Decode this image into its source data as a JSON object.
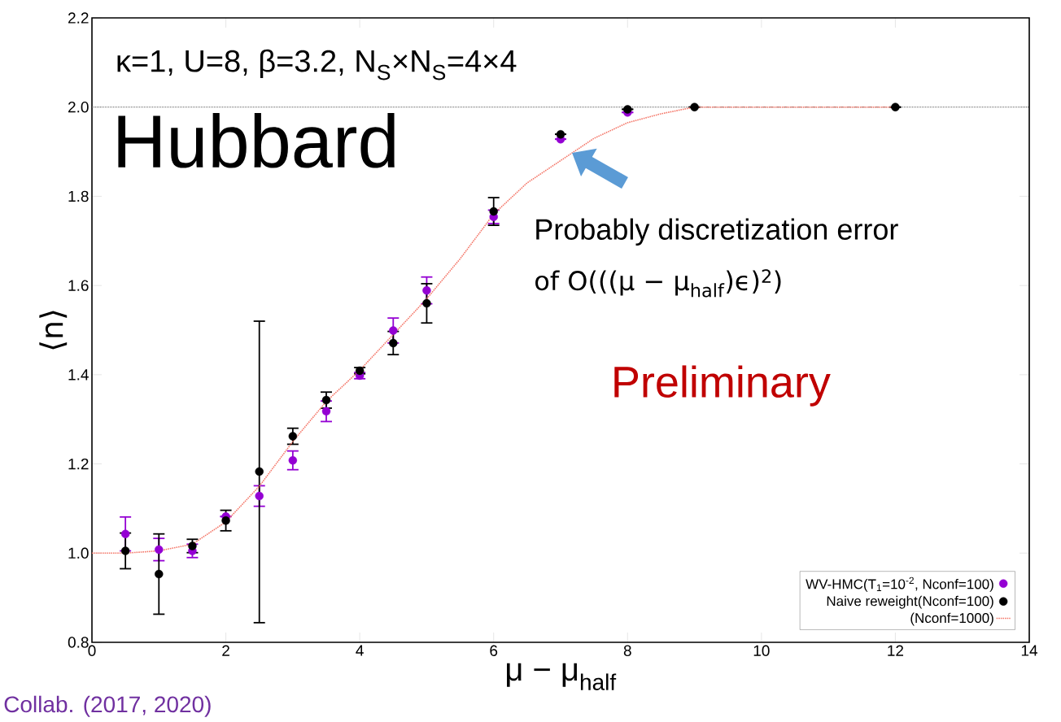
{
  "chart_data": {
    "type": "scatter",
    "xlabel": "μ − μ$_{half}$",
    "ylabel": "⟨n⟩",
    "x": [
      0.5,
      1,
      1.5,
      2,
      2.5,
      3,
      3.5,
      4,
      4.5,
      5,
      6,
      7,
      8,
      9,
      12
    ],
    "series": [
      {
        "name": "WV-HMC(T$_{1}$=10$^{-2}$, Nconf=100)",
        "color": "#9400d3",
        "marker": "circle",
        "values": [
          1.043,
          1.008,
          1.005,
          1.082,
          1.128,
          1.208,
          1.318,
          1.398,
          1.499,
          1.589,
          1.754,
          1.928,
          1.988,
          null,
          null
        ],
        "errors": [
          0.038,
          0.025,
          0.015,
          null,
          0.023,
          0.021,
          0.023,
          0.007,
          0.028,
          0.03,
          0.015,
          null,
          null,
          null,
          null
        ]
      },
      {
        "name": "Naive reweight(Nconf=100)",
        "color": "#000000",
        "marker": "circle",
        "values": [
          1.005,
          0.953,
          1.016,
          1.073,
          1.183,
          1.262,
          1.343,
          1.409,
          1.471,
          1.56,
          1.766,
          1.939,
          1.995,
          2.0,
          2.0
        ],
        "errors": [
          0.04,
          0.09,
          0.015,
          0.023,
          [
            0.844,
            1.52
          ],
          0.018,
          0.018,
          0.007,
          0.026,
          0.044,
          0.031,
          null,
          null,
          null,
          null
        ]
      },
      {
        "name": "(Nconf=1000)",
        "type": "line",
        "color": "#f4786a",
        "line_style": "dotted",
        "marker": "none",
        "x": [
          0,
          0.5,
          1,
          1.5,
          2,
          2.5,
          3,
          3.5,
          4,
          4.5,
          5,
          5.5,
          6,
          6.5,
          7,
          7.5,
          8,
          8.5,
          9,
          10,
          11,
          12
        ],
        "values": [
          1.0,
          1.0,
          1.005,
          1.02,
          1.07,
          1.15,
          1.25,
          1.34,
          1.41,
          1.49,
          1.57,
          1.66,
          1.76,
          1.83,
          1.88,
          1.93,
          1.965,
          1.985,
          2.0,
          2.0,
          2.0,
          2.0
        ]
      }
    ],
    "xlim": [
      0,
      14
    ],
    "ylim": [
      0.8,
      2.2
    ],
    "xticks": [
      0,
      2,
      4,
      6,
      8,
      10,
      12,
      14
    ],
    "yticks": [
      {
        "value": 0.8,
        "label": "0.8"
      },
      {
        "value": 1.0,
        "label": "1.0"
      },
      {
        "value": 1.2,
        "label": "1.2"
      },
      {
        "value": 1.4,
        "label": "1.4"
      },
      {
        "value": 1.6,
        "label": "1.6"
      },
      {
        "value": 1.8,
        "label": "1.8"
      },
      {
        "value": 2.0,
        "label": "2.0"
      },
      {
        "value": 2.2,
        "label": "2.2"
      }
    ],
    "ref_lines": [
      {
        "axis": "y",
        "value": 2.0,
        "color": "#555555",
        "line_style": "dotted"
      }
    ],
    "legend": "bottom right",
    "annotations": [
      "κ=1, U=8, β=3.2, N$_{S}$×N$_{S}$=4×4",
      "Hubbard",
      "Probably discretization error",
      "of O(((μ − μ$_{half}$)ϵ)$^{2}$)",
      "Preliminary",
      "Collab.  (2017, 2020)"
    ]
  }
}
